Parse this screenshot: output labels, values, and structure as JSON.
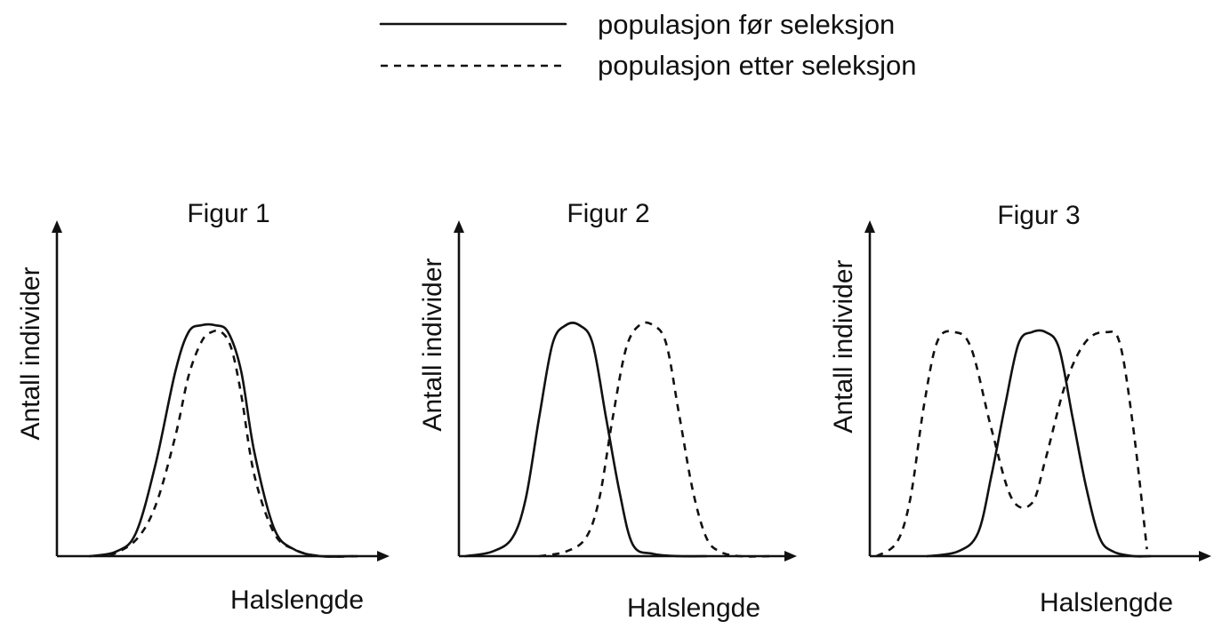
{
  "legend": {
    "items": [
      {
        "label": "populasjon før seleksjon",
        "style": "solid"
      },
      {
        "label": "populasjon etter seleksjon",
        "style": "dashed"
      }
    ]
  },
  "chart_data": [
    {
      "type": "line",
      "title": "Figur 1",
      "xlabel": "Halslengde",
      "ylabel": "Antall individer",
      "grid": false,
      "series": [
        {
          "name": "populasjon før seleksjon",
          "style": "solid",
          "x": [
            0.1,
            0.18,
            0.24,
            0.3,
            0.36,
            0.4,
            0.44,
            0.48,
            0.52,
            0.56,
            0.6,
            0.66,
            0.72,
            0.8,
            0.9
          ],
          "y": [
            0.0,
            0.02,
            0.1,
            0.4,
            0.8,
            0.97,
            1.0,
            1.0,
            0.97,
            0.8,
            0.45,
            0.12,
            0.03,
            0.0,
            0.0
          ]
        },
        {
          "name": "populasjon etter seleksjon",
          "style": "dashed",
          "x": [
            0.16,
            0.24,
            0.3,
            0.36,
            0.4,
            0.44,
            0.47,
            0.5,
            0.53,
            0.56,
            0.6,
            0.66,
            0.72,
            0.8,
            0.92
          ],
          "y": [
            0.0,
            0.07,
            0.22,
            0.52,
            0.78,
            0.93,
            0.97,
            0.97,
            0.9,
            0.7,
            0.35,
            0.1,
            0.03,
            0.0,
            0.0
          ]
        }
      ]
    },
    {
      "type": "line",
      "title": "Figur 2",
      "xlabel": "Halslengde",
      "ylabel": "Antall individer",
      "grid": false,
      "series": [
        {
          "name": "populasjon før seleksjon",
          "style": "solid",
          "x": [
            0.02,
            0.1,
            0.16,
            0.2,
            0.24,
            0.28,
            0.32,
            0.36,
            0.4,
            0.44,
            0.48,
            0.52,
            0.58,
            0.66,
            0.74
          ],
          "y": [
            0.0,
            0.02,
            0.08,
            0.25,
            0.6,
            0.92,
            1.0,
            1.0,
            0.92,
            0.6,
            0.28,
            0.05,
            0.01,
            0.0,
            0.0
          ]
        },
        {
          "name": "populasjon etter seleksjon",
          "style": "dashed",
          "x": [
            0.24,
            0.32,
            0.38,
            0.42,
            0.46,
            0.5,
            0.54,
            0.58,
            0.62,
            0.66,
            0.7,
            0.74,
            0.78,
            0.84,
            0.94
          ],
          "y": [
            0.0,
            0.02,
            0.08,
            0.25,
            0.6,
            0.9,
            1.0,
            1.0,
            0.92,
            0.6,
            0.28,
            0.08,
            0.02,
            0.0,
            0.0
          ]
        }
      ]
    },
    {
      "type": "line",
      "title": "Figur 3",
      "xlabel": "Halslengde",
      "ylabel": "Antall individer",
      "grid": false,
      "series": [
        {
          "name": "populasjon før seleksjon",
          "style": "solid",
          "x": [
            0.17,
            0.26,
            0.32,
            0.36,
            0.4,
            0.44,
            0.48,
            0.52,
            0.56,
            0.6,
            0.64,
            0.68,
            0.72,
            0.78,
            0.83
          ],
          "y": [
            0.0,
            0.02,
            0.1,
            0.35,
            0.65,
            0.92,
            0.97,
            0.97,
            0.9,
            0.6,
            0.3,
            0.08,
            0.02,
            0.0,
            0.0
          ]
        },
        {
          "name": "populasjon etter seleksjon",
          "style": "dashed",
          "x": [
            0.02,
            0.08,
            0.12,
            0.16,
            0.2,
            0.25,
            0.3,
            0.36,
            0.42,
            0.48,
            0.52,
            0.58,
            0.64,
            0.7,
            0.74,
            0.78,
            0.82
          ],
          "y": [
            0.0,
            0.06,
            0.25,
            0.65,
            0.93,
            0.97,
            0.9,
            0.55,
            0.25,
            0.23,
            0.42,
            0.75,
            0.93,
            0.97,
            0.92,
            0.55,
            0.03
          ]
        }
      ]
    }
  ]
}
